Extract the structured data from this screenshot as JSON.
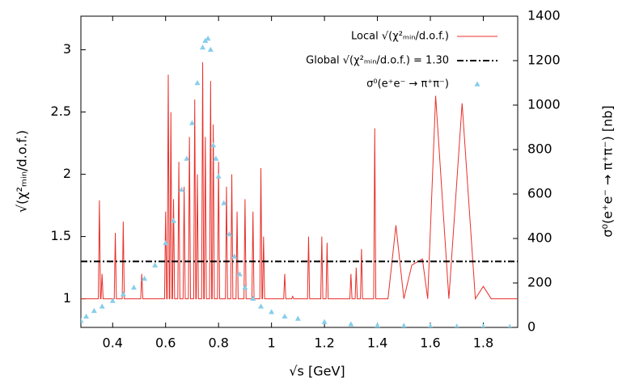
{
  "chart_data": {
    "type": "line",
    "xlabel": "√s [GeV]",
    "ylabel": "√(χ²ₘᵢₙ/d.o.f.)",
    "y2label": "σ⁰(e⁺e⁻ → π⁺π⁻) [nb]",
    "xlim": [
      0.28,
      1.93
    ],
    "ylim": [
      0.77,
      3.27
    ],
    "y2lim": [
      0,
      1400
    ],
    "xticks": [
      0.4,
      0.6,
      0.8,
      1,
      1.2,
      1.4,
      1.6,
      1.8
    ],
    "yticks": [
      1,
      1.5,
      2,
      2.5,
      3
    ],
    "y2ticks": [
      0,
      200,
      400,
      600,
      800,
      1000,
      1200,
      1400
    ],
    "legend": "top-right",
    "series": [
      {
        "name": "Local √(χ²ₘᵢₙ/d.o.f.)",
        "color": "#e8302a",
        "style": "line",
        "x": [
          0.28,
          0.346,
          0.35,
          0.354,
          0.356,
          0.36,
          0.364,
          0.406,
          0.41,
          0.414,
          0.436,
          0.44,
          0.444,
          0.506,
          0.51,
          0.514,
          0.596,
          0.6,
          0.604,
          0.606,
          0.61,
          0.614,
          0.616,
          0.62,
          0.624,
          0.626,
          0.63,
          0.634,
          0.646,
          0.65,
          0.654,
          0.666,
          0.67,
          0.674,
          0.686,
          0.69,
          0.694,
          0.706,
          0.71,
          0.714,
          0.716,
          0.72,
          0.724,
          0.736,
          0.74,
          0.744,
          0.746,
          0.75,
          0.754,
          0.766,
          0.77,
          0.774,
          0.776,
          0.78,
          0.784,
          0.796,
          0.8,
          0.804,
          0.826,
          0.83,
          0.834,
          0.846,
          0.85,
          0.854,
          0.866,
          0.87,
          0.874,
          0.896,
          0.9,
          0.904,
          0.926,
          0.93,
          0.934,
          0.956,
          0.96,
          0.964,
          0.966,
          0.97,
          0.974,
          1.046,
          1.05,
          1.054,
          1.076,
          1.08,
          1.084,
          1.136,
          1.14,
          1.144,
          1.186,
          1.19,
          1.194,
          1.206,
          1.21,
          1.214,
          1.296,
          1.3,
          1.304,
          1.316,
          1.32,
          1.324,
          1.336,
          1.34,
          1.344,
          1.386,
          1.39,
          1.394,
          1.44,
          1.47,
          1.5,
          1.53,
          1.57,
          1.59,
          1.62,
          1.67,
          1.72,
          1.77,
          1.8,
          1.83,
          1.93
        ],
        "values": [
          1,
          1,
          1.79,
          1,
          1,
          1.2,
          1,
          1,
          1.53,
          1,
          1,
          1.62,
          1,
          1,
          1.2,
          1,
          1,
          1.7,
          1,
          1,
          2.8,
          1,
          1,
          2.5,
          1,
          1,
          1.8,
          1,
          1,
          2.1,
          1,
          1,
          1.9,
          1,
          1,
          2.3,
          1,
          1,
          2.6,
          1,
          1,
          2.0,
          1,
          1,
          2.9,
          1,
          1,
          2.3,
          1,
          1,
          2.75,
          1,
          1,
          2.4,
          1,
          1,
          2.1,
          1,
          1,
          1.9,
          1,
          1,
          2.0,
          1,
          1,
          1.7,
          1,
          1,
          1.8,
          1,
          1,
          1.7,
          1,
          1,
          2.05,
          1,
          1,
          1.5,
          1,
          1,
          1.2,
          1,
          1,
          1.02,
          1,
          1,
          1.5,
          1,
          1,
          1.5,
          1,
          1,
          1.45,
          1,
          1,
          1.2,
          1,
          1,
          1.25,
          1,
          1,
          1.4,
          1,
          1,
          2.37,
          1,
          1,
          1.59,
          1,
          1.27,
          1.32,
          1,
          2.63,
          1,
          2.57,
          1,
          1.1,
          1,
          1
        ]
      },
      {
        "name": "Global √(χ²ₘᵢₙ/d.o.f.) = 1.30",
        "color": "#000000",
        "style": "dashdot",
        "x": [
          0.28,
          1.93
        ],
        "values": [
          1.3,
          1.3
        ]
      },
      {
        "name": "σ⁰(e⁺e⁻ → π⁺π⁻)",
        "color": "#87ceeb",
        "style": "triangle",
        "axis": "y2",
        "x": [
          0.28,
          0.3,
          0.33,
          0.36,
          0.4,
          0.44,
          0.48,
          0.52,
          0.56,
          0.6,
          0.63,
          0.66,
          0.68,
          0.7,
          0.72,
          0.74,
          0.75,
          0.76,
          0.77,
          0.78,
          0.79,
          0.8,
          0.82,
          0.84,
          0.86,
          0.88,
          0.9,
          0.93,
          0.96,
          1.0,
          1.05,
          1.1,
          1.2,
          1.3,
          1.4,
          1.5,
          1.6,
          1.7,
          1.8,
          1.9
        ],
        "values": [
          30,
          50,
          75,
          95,
          120,
          150,
          180,
          220,
          280,
          380,
          480,
          620,
          760,
          920,
          1100,
          1260,
          1290,
          1300,
          1250,
          820,
          760,
          680,
          560,
          420,
          320,
          240,
          180,
          130,
          95,
          70,
          50,
          40,
          25,
          15,
          10,
          8,
          6,
          5,
          4,
          3
        ]
      }
    ]
  }
}
